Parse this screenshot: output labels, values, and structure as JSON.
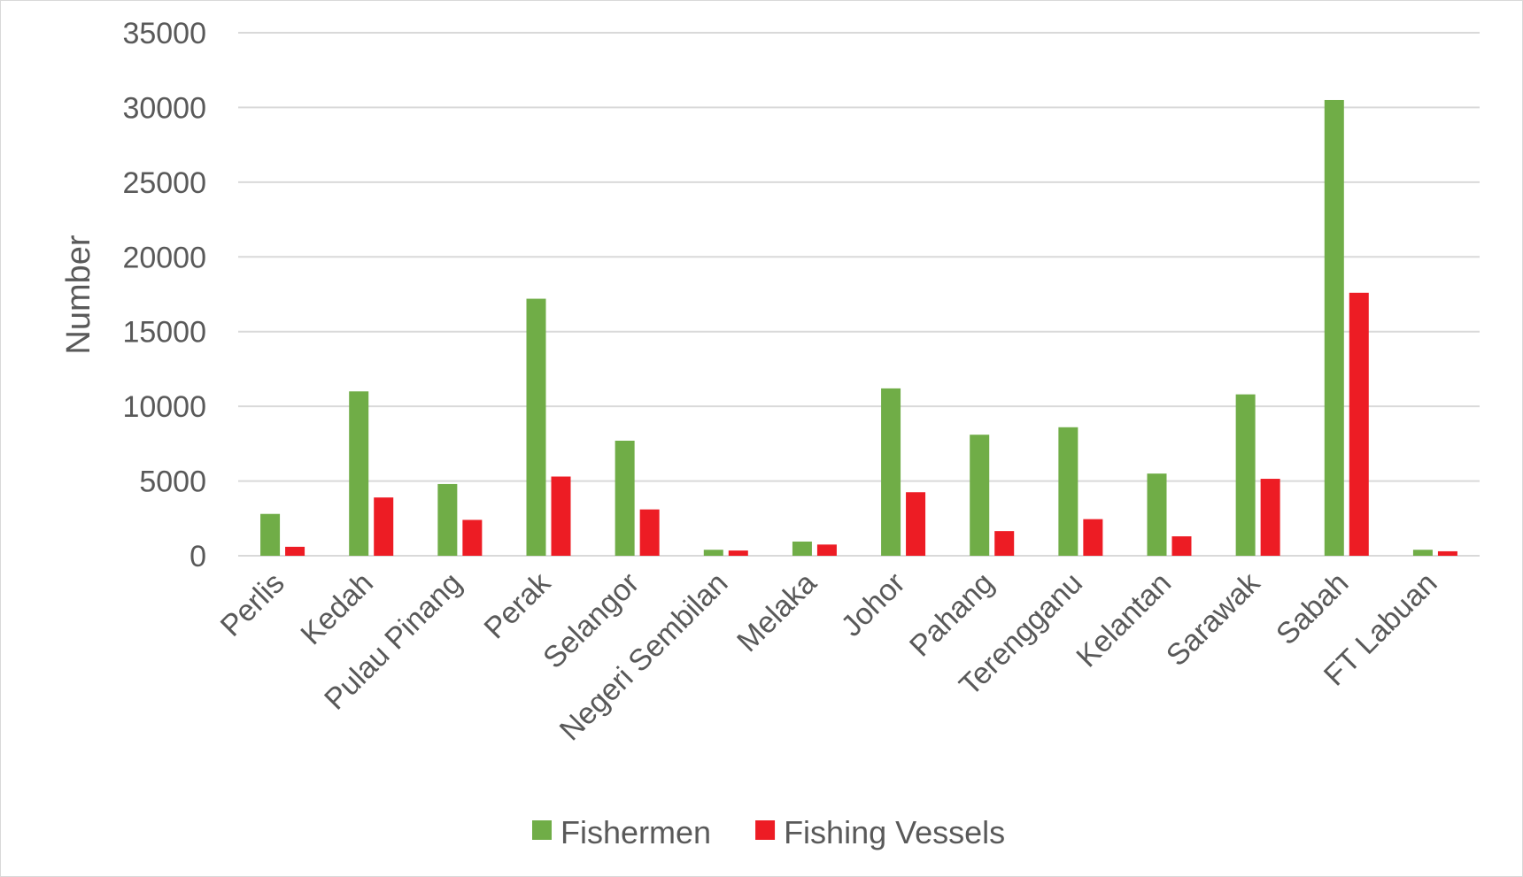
{
  "chart_data": {
    "type": "bar",
    "title": "",
    "xlabel": "",
    "ylabel": "Number",
    "ylim": [
      0,
      35000
    ],
    "yticks": [
      0,
      5000,
      10000,
      15000,
      20000,
      25000,
      30000,
      35000
    ],
    "grid": true,
    "legend_position": "bottom",
    "categories": [
      "Perlis",
      "Kedah",
      "Pulau Pinang",
      "Perak",
      "Selangor",
      "Negeri Sembilan",
      "Melaka",
      "Johor",
      "Pahang",
      "Terengganu",
      "Kelantan",
      "Sarawak",
      "Sabah",
      "FT Labuan"
    ],
    "series": [
      {
        "name": "Fishermen",
        "color": "#70ad47",
        "values": [
          2800,
          11000,
          4800,
          17200,
          7700,
          400,
          950,
          11200,
          8100,
          8600,
          5500,
          10800,
          30500,
          400
        ]
      },
      {
        "name": "Fishing Vessels",
        "color": "#ed1c24",
        "values": [
          600,
          3900,
          2400,
          5300,
          3100,
          350,
          750,
          4250,
          1650,
          2450,
          1300,
          5150,
          17600,
          300
        ]
      }
    ]
  }
}
